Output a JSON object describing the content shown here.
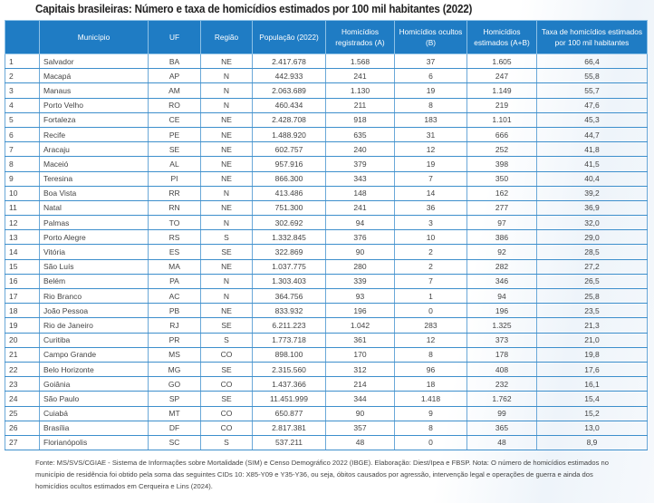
{
  "title": "Capitais brasileiras: Número e taxa de homicídios estimados por 100 mil habitantes (2022)",
  "table": {
    "headers": [
      "",
      "Município",
      "UF",
      "Região",
      "População (2022)",
      "Homicídios registrados (A)",
      "Homicídios ocultos (B)",
      "Homicídios estimados (A+B)",
      "Taxa de homicídios estimados por 100 mil habitantes"
    ],
    "rows": [
      [
        "1",
        "Salvador",
        "BA",
        "NE",
        "2.417.678",
        "1.568",
        "37",
        "1.605",
        "66,4"
      ],
      [
        "2",
        "Macapá",
        "AP",
        "N",
        "442.933",
        "241",
        "6",
        "247",
        "55,8"
      ],
      [
        "3",
        "Manaus",
        "AM",
        "N",
        "2.063.689",
        "1.130",
        "19",
        "1.149",
        "55,7"
      ],
      [
        "4",
        "Porto Velho",
        "RO",
        "N",
        "460.434",
        "211",
        "8",
        "219",
        "47,6"
      ],
      [
        "5",
        "Fortaleza",
        "CE",
        "NE",
        "2.428.708",
        "918",
        "183",
        "1.101",
        "45,3"
      ],
      [
        "6",
        "Recife",
        "PE",
        "NE",
        "1.488.920",
        "635",
        "31",
        "666",
        "44,7"
      ],
      [
        "7",
        "Aracaju",
        "SE",
        "NE",
        "602.757",
        "240",
        "12",
        "252",
        "41,8"
      ],
      [
        "8",
        "Maceió",
        "AL",
        "NE",
        "957.916",
        "379",
        "19",
        "398",
        "41,5"
      ],
      [
        "9",
        "Teresina",
        "PI",
        "NE",
        "866.300",
        "343",
        "7",
        "350",
        "40,4"
      ],
      [
        "10",
        "Boa Vista",
        "RR",
        "N",
        "413.486",
        "148",
        "14",
        "162",
        "39,2"
      ],
      [
        "11",
        "Natal",
        "RN",
        "NE",
        "751.300",
        "241",
        "36",
        "277",
        "36,9"
      ],
      [
        "12",
        "Palmas",
        "TO",
        "N",
        "302.692",
        "94",
        "3",
        "97",
        "32,0"
      ],
      [
        "13",
        "Porto Alegre",
        "RS",
        "S",
        "1.332.845",
        "376",
        "10",
        "386",
        "29,0"
      ],
      [
        "14",
        "Vitória",
        "ES",
        "SE",
        "322.869",
        "90",
        "2",
        "92",
        "28,5"
      ],
      [
        "15",
        "São Luís",
        "MA",
        "NE",
        "1.037.775",
        "280",
        "2",
        "282",
        "27,2"
      ],
      [
        "16",
        "Belém",
        "PA",
        "N",
        "1.303.403",
        "339",
        "7",
        "346",
        "26,5"
      ],
      [
        "17",
        "Rio Branco",
        "AC",
        "N",
        "364.756",
        "93",
        "1",
        "94",
        "25,8"
      ],
      [
        "18",
        "João Pessoa",
        "PB",
        "NE",
        "833.932",
        "196",
        "0",
        "196",
        "23,5"
      ],
      [
        "19",
        "Rio de Janeiro",
        "RJ",
        "SE",
        "6.211.223",
        "1.042",
        "283",
        "1.325",
        "21,3"
      ],
      [
        "20",
        "Curitiba",
        "PR",
        "S",
        "1.773.718",
        "361",
        "12",
        "373",
        "21,0"
      ],
      [
        "21",
        "Campo Grande",
        "MS",
        "CO",
        "898.100",
        "170",
        "8",
        "178",
        "19,8"
      ],
      [
        "22",
        "Belo Horizonte",
        "MG",
        "SE",
        "2.315.560",
        "312",
        "96",
        "408",
        "17,6"
      ],
      [
        "23",
        "Goiânia",
        "GO",
        "CO",
        "1.437.366",
        "214",
        "18",
        "232",
        "16,1"
      ],
      [
        "24",
        "São Paulo",
        "SP",
        "SE",
        "11.451.999",
        "344",
        "1.418",
        "1.762",
        "15,4"
      ],
      [
        "25",
        "Cuiabá",
        "MT",
        "CO",
        "650.877",
        "90",
        "9",
        "99",
        "15,2"
      ],
      [
        "26",
        "Brasília",
        "DF",
        "CO",
        "2.817.381",
        "357",
        "8",
        "365",
        "13,0"
      ],
      [
        "27",
        "Florianópolis",
        "SC",
        "S",
        "537.211",
        "48",
        "0",
        "48",
        "8,9"
      ]
    ]
  },
  "footer": "Fonte: MS/SVS/CGIAE - Sistema de Informações sobre Mortalidade (SIM) e Censo Demográfico 2022 (IBGE). Elaboração: Diest/Ipea e FBSP. Nota: O número de homicídios estimados no município de residência foi obtido pela soma das seguintes CIDs 10: X85-Y09 e Y35-Y36, ou seja, óbitos causados por agressão, intervenção legal e operações de guerra e ainda dos homicídios ocultos estimados em Cerqueira e Lins (2024).",
  "colors": {
    "header_bg": "#1f7cc4",
    "border": "#3d8fcc"
  }
}
